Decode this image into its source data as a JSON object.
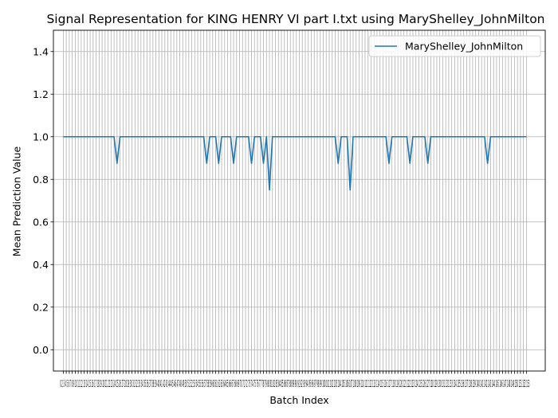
{
  "chart_data": {
    "type": "line",
    "title": "Signal Representation for KING HENRY VI part I.txt using MaryShelley_JohnMilton",
    "xlabel": "Batch Index",
    "ylabel": "Mean Prediction Value",
    "ylim": [
      -0.1,
      1.5
    ],
    "yticks": [
      "0.0",
      "0.2",
      "0.4",
      "0.6",
      "0.8",
      "1.0",
      "1.2",
      "1.4"
    ],
    "xlim": [
      -3.3,
      161.3
    ],
    "x_start": 0,
    "x_end": 155,
    "grid": true,
    "legend_position": "upper right",
    "series": [
      {
        "name": "MaryShelley_JohnMilton",
        "color": "#1f77b4",
        "default": 1.0,
        "deviations": [
          [
            18,
            0.875
          ],
          [
            48,
            0.875
          ],
          [
            52,
            0.875
          ],
          [
            57,
            0.875
          ],
          [
            63,
            0.875
          ],
          [
            67,
            0.875
          ],
          [
            69,
            0.75
          ],
          [
            92,
            0.875
          ],
          [
            96,
            0.75
          ],
          [
            109,
            0.875
          ],
          [
            116,
            0.875
          ],
          [
            122,
            0.875
          ],
          [
            142,
            0.875
          ]
        ]
      }
    ]
  },
  "x_tick_text": "0 2 3 4 5 6 7 8 9 10 11 12 13 14 15 16 17 18 19 20 21 22 23 24 25 26 27 28 29 30 31 32 33 34 35 36 37 38 39 40 41 42 43 44 45 46 47 48 49 50 51 52 53 54 55 56 57 58 59 60 61 62 63 64 65 66 67 68 69 70 71 72 73 74 75 76 77 78 79 80 81 82 83 84 85 86 87 88 89 90 91 92 93 94 95 96 97 98 99 100 101 102 103 104 105 106 107 108 109 110 111 112 113 114 115 116 117 118 119 120 121 122 123 124 125 126 127 128 129 130 131 132 133 134 135 136 137 138 139 140 141 142 143 144 145 146 147 148 149 150 151 152 153"
}
